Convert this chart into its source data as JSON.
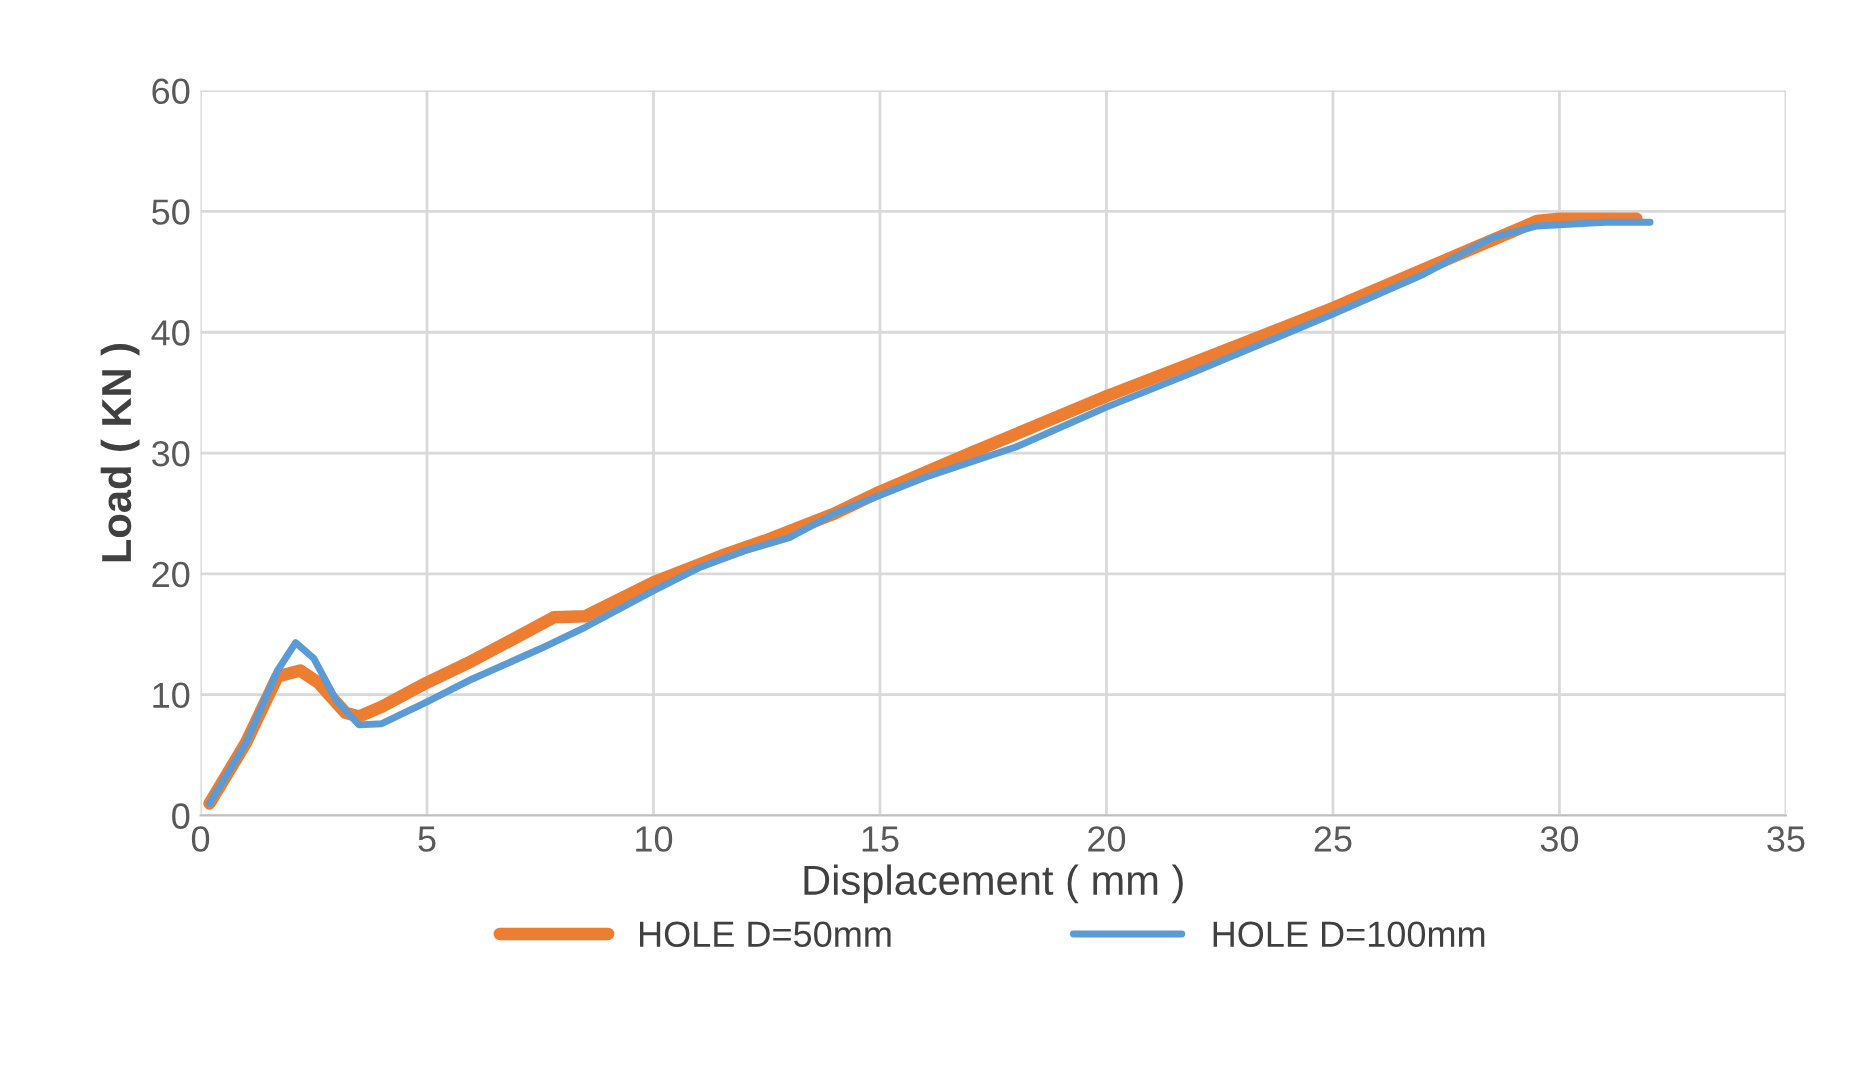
{
  "chart_data": {
    "type": "line",
    "xlabel": "Displacement ( mm )",
    "ylabel": "Load ( KN )",
    "xlim": [
      0,
      35
    ],
    "xticks": [
      0,
      5,
      10,
      15,
      20,
      25,
      30,
      35
    ],
    "ylim": [
      0,
      60
    ],
    "yticks": [
      0,
      10,
      20,
      30,
      40,
      50,
      60
    ],
    "grid": true,
    "legend": "bottom",
    "marker": "none",
    "line_style": "solid",
    "series": [
      {
        "name": "HOLE D=50mm",
        "color": "#ed7d31",
        "x": [
          0.2,
          1,
          1.7,
          2.2,
          2.6,
          3.2,
          3.5,
          4,
          5,
          6,
          7,
          7.8,
          8.5,
          10,
          11.5,
          12.5,
          14,
          15,
          17,
          20,
          22,
          25,
          28,
          29.5,
          30,
          31.7
        ],
        "values": [
          1,
          6,
          11.5,
          12,
          11,
          8.5,
          8.2,
          9,
          11,
          12.8,
          14.8,
          16.4,
          16.5,
          19.3,
          21.5,
          22.8,
          25,
          26.8,
          30,
          34.7,
          37.6,
          42,
          46.8,
          49.2,
          49.4,
          49.4
        ]
      },
      {
        "name": "HOLE D=100mm",
        "color": "#5b9bd5",
        "x": [
          0.2,
          1,
          1.7,
          2.1,
          2.5,
          3,
          3.5,
          4,
          5,
          6,
          7.5,
          8.5,
          10,
          11,
          12,
          13,
          14,
          15,
          16,
          18,
          20,
          22,
          25,
          27,
          28.5,
          29.5,
          31,
          32
        ],
        "values": [
          1,
          6,
          12,
          14.3,
          13,
          9.5,
          7.5,
          7.6,
          9.4,
          11.3,
          13.8,
          15.6,
          18.6,
          20.5,
          21.9,
          23,
          25,
          26.5,
          28,
          30.5,
          33.8,
          36.8,
          41.5,
          44.8,
          47.8,
          48.8,
          49.1,
          49.1
        ]
      }
    ]
  }
}
